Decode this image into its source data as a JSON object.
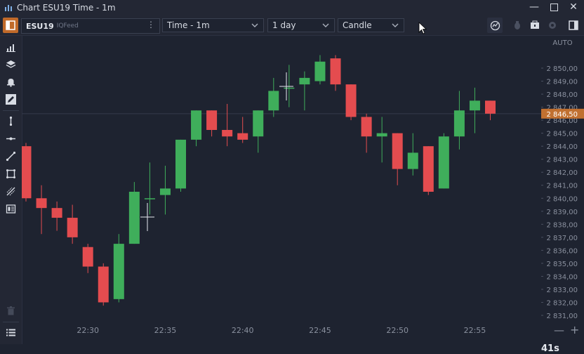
{
  "window": {
    "title": "Chart ESU19 Time - 1m"
  },
  "toolbar": {
    "symbol": "ESU19",
    "feed": "IQFeed",
    "interval": "Time - 1m",
    "range": "1 day",
    "chart_type": "Candle"
  },
  "price_axis": {
    "mode": "AUTO",
    "last_price": "2 846,50",
    "last_color": "#c07030"
  },
  "countdown": "41s",
  "zoom": {
    "minus": "—",
    "plus": "+"
  },
  "colors": {
    "up": "#3fae5b",
    "down": "#e44c4f",
    "bg": "#1e2330",
    "accent": "#c06a2a"
  },
  "icons": {
    "left_tools": [
      "indicators-icon",
      "layers-icon",
      "alert-bell-icon",
      "pencil-icon",
      "vertical-line-icon",
      "horizontal-line-icon",
      "trend-line-icon",
      "rectangle-icon",
      "fibonacci-icon",
      "template-icon",
      "trash-icon",
      "list-icon"
    ]
  },
  "chart_data": {
    "type": "candlestick",
    "y_ticks": [
      "2 850,00",
      "2 849,00",
      "2 848,00",
      "2 847,00",
      "2 846,00",
      "2 845,00",
      "2 844,00",
      "2 843,00",
      "2 842,00",
      "2 841,00",
      "2 840,00",
      "2 839,00",
      "2 838,00",
      "2 837,00",
      "2 836,00",
      "2 835,00",
      "2 834,00",
      "2 833,00",
      "2 832,00",
      "2 831,00"
    ],
    "y_range": [
      2830.5,
      2851.5
    ],
    "x_ticks": [
      "22:30",
      "22:35",
      "22:40",
      "22:45",
      "22:50",
      "22:55"
    ],
    "x_tick_index": [
      4,
      9,
      14,
      19,
      24,
      29
    ],
    "last_price_value": 2846.5,
    "candles": [
      {
        "o": 2844.0,
        "h": 2844.25,
        "l": 2839.75,
        "c": 2840.0
      },
      {
        "o": 2840.0,
        "h": 2841.0,
        "l": 2837.25,
        "c": 2839.25
      },
      {
        "o": 2839.25,
        "h": 2839.75,
        "l": 2837.5,
        "c": 2838.5
      },
      {
        "o": 2838.5,
        "h": 2839.5,
        "l": 2836.5,
        "c": 2837.0
      },
      {
        "o": 2836.25,
        "h": 2836.5,
        "l": 2834.25,
        "c": 2834.75
      },
      {
        "o": 2834.75,
        "h": 2835.0,
        "l": 2831.75,
        "c": 2832.0
      },
      {
        "o": 2832.25,
        "h": 2837.25,
        "l": 2832.0,
        "c": 2836.5
      },
      {
        "o": 2836.5,
        "h": 2841.25,
        "l": 2836.5,
        "c": 2840.5
      },
      {
        "o": 2840.0,
        "h": 2842.75,
        "l": 2838.75,
        "c": 2840.0
      },
      {
        "o": 2840.25,
        "h": 2842.5,
        "l": 2838.75,
        "c": 2840.75
      },
      {
        "o": 2840.75,
        "h": 2844.5,
        "l": 2840.5,
        "c": 2844.5
      },
      {
        "o": 2844.5,
        "h": 2846.75,
        "l": 2844.0,
        "c": 2846.75
      },
      {
        "o": 2846.75,
        "h": 2846.75,
        "l": 2844.75,
        "c": 2845.25
      },
      {
        "o": 2845.25,
        "h": 2847.25,
        "l": 2844.0,
        "c": 2844.75
      },
      {
        "o": 2845.0,
        "h": 2846.25,
        "l": 2844.25,
        "c": 2844.5
      },
      {
        "o": 2844.75,
        "h": 2846.75,
        "l": 2843.5,
        "c": 2846.75
      },
      {
        "o": 2846.75,
        "h": 2849.25,
        "l": 2846.25,
        "c": 2848.25
      },
      {
        "o": 2848.5,
        "h": 2850.25,
        "l": 2847.0,
        "c": 2848.5
      },
      {
        "o": 2848.75,
        "h": 2849.75,
        "l": 2846.75,
        "c": 2849.25
      },
      {
        "o": 2849.0,
        "h": 2851.0,
        "l": 2848.75,
        "c": 2850.5
      },
      {
        "o": 2850.75,
        "h": 2851.0,
        "l": 2848.25,
        "c": 2848.75
      },
      {
        "o": 2848.75,
        "h": 2848.75,
        "l": 2846.0,
        "c": 2846.25
      },
      {
        "o": 2846.25,
        "h": 2846.5,
        "l": 2843.5,
        "c": 2844.75
      },
      {
        "o": 2844.75,
        "h": 2846.25,
        "l": 2842.75,
        "c": 2845.0
      },
      {
        "o": 2845.0,
        "h": 2845.0,
        "l": 2841.0,
        "c": 2842.25
      },
      {
        "o": 2842.25,
        "h": 2845.0,
        "l": 2841.75,
        "c": 2843.5
      },
      {
        "o": 2844.0,
        "h": 2844.0,
        "l": 2840.25,
        "c": 2840.5
      },
      {
        "o": 2840.75,
        "h": 2845.0,
        "l": 2840.75,
        "c": 2844.75
      },
      {
        "o": 2844.75,
        "h": 2848.25,
        "l": 2843.75,
        "c": 2846.75
      },
      {
        "o": 2846.75,
        "h": 2848.5,
        "l": 2845.0,
        "c": 2847.5
      },
      {
        "o": 2847.5,
        "h": 2847.5,
        "l": 2846.0,
        "c": 2846.5
      }
    ]
  }
}
